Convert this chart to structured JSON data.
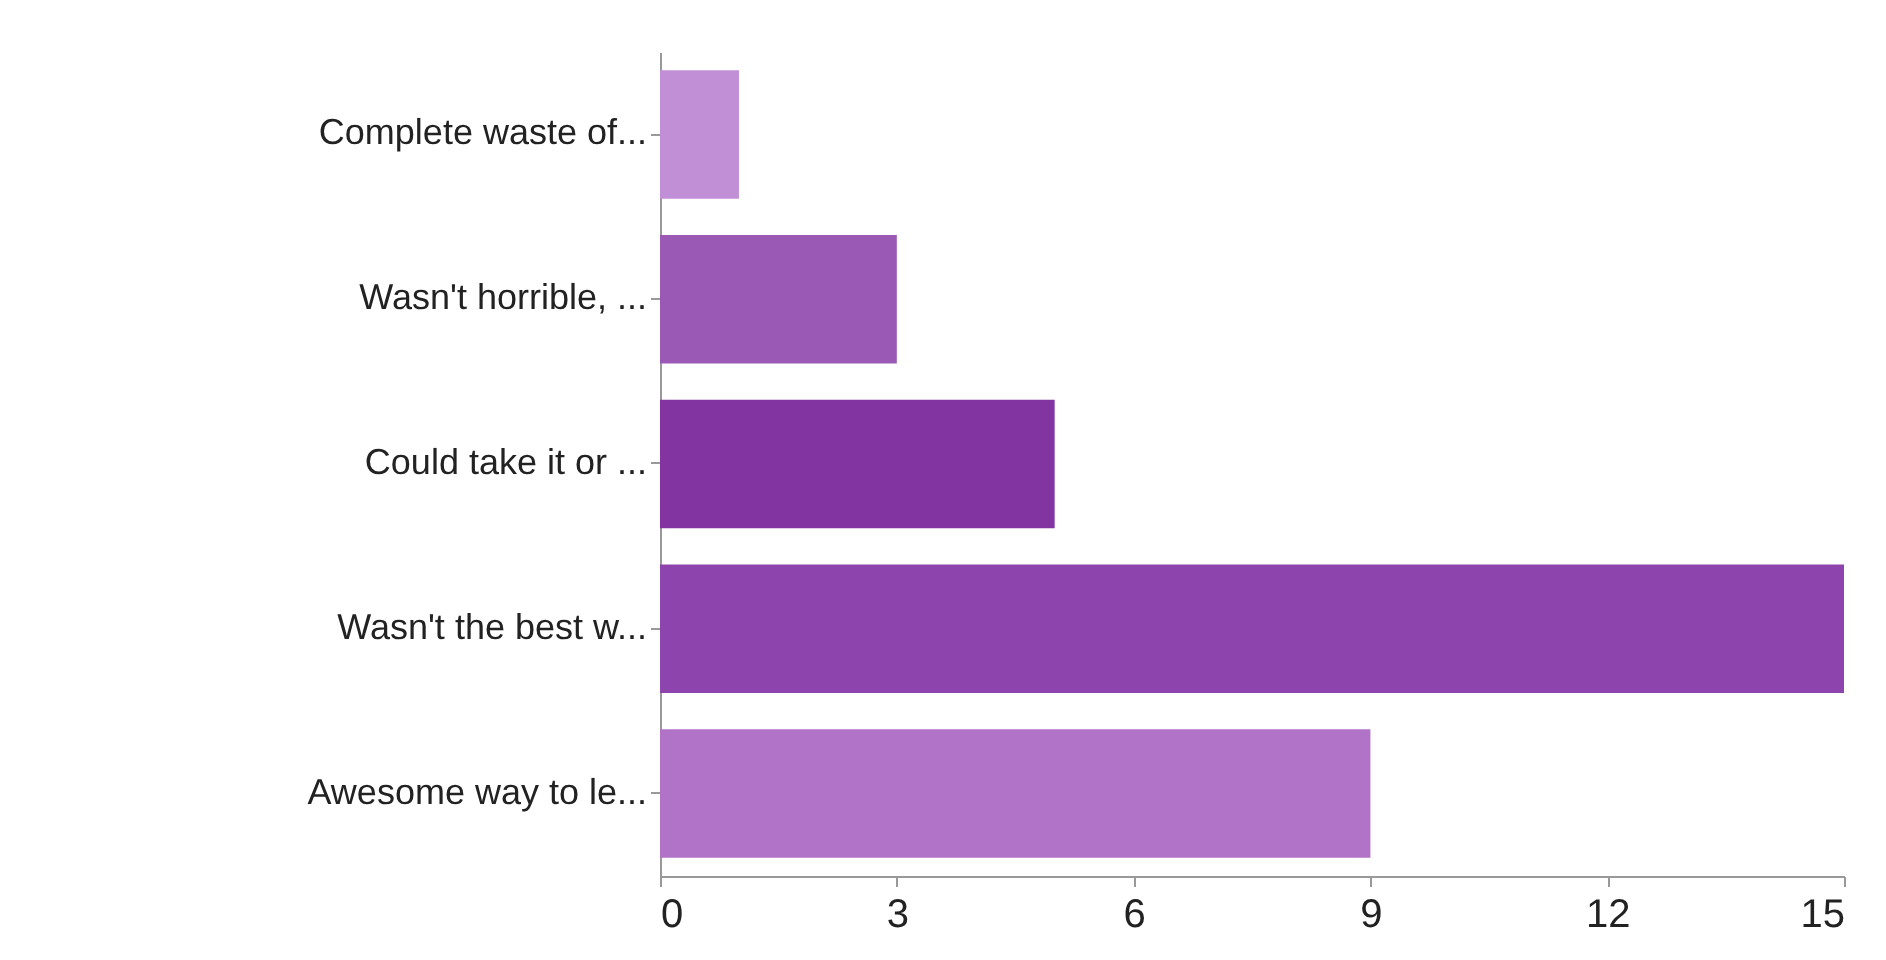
{
  "chart_data": {
    "type": "bar",
    "orientation": "horizontal",
    "categories": [
      "Complete waste of...",
      "Wasn't horrible, ...",
      "Could take it or ...",
      "Wasn't the best w...",
      "Awesome way to le..."
    ],
    "values": [
      1,
      3,
      5,
      15,
      9
    ],
    "colors": [
      "#c08fd6",
      "#9b59b6",
      "#8234a0",
      "#8e44ad",
      "#b073c8"
    ],
    "xlim": [
      0,
      15
    ],
    "xticks": [
      0,
      3,
      6,
      9,
      12,
      15
    ],
    "grid": false
  }
}
